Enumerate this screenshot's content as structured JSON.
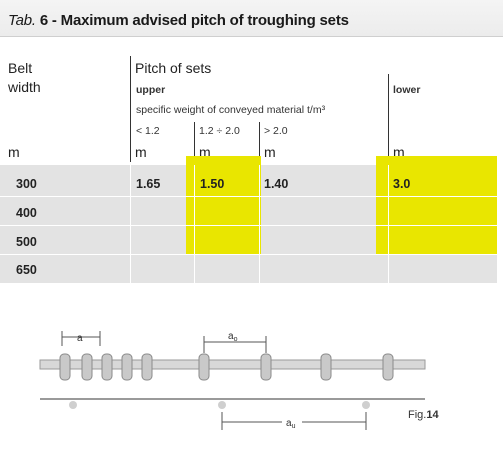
{
  "title": {
    "prefix": "Tab.",
    "text": "6 - Maximum advised pitch of troughing sets"
  },
  "header": {
    "belt_width_line1": "Belt",
    "belt_width_line2": "width",
    "pitch_of_sets": "Pitch of sets",
    "upper": "upper",
    "lower": "lower",
    "specific_weight": "specific weight of conveyed material t/m³",
    "col_lt": "< 1.2",
    "col_mid": "1.2 ÷ 2.0",
    "col_gt": "> 2.0",
    "units": [
      "m",
      "m",
      "m",
      "m",
      "m"
    ]
  },
  "rows": [
    {
      "width": "300",
      "lt": "1.65",
      "mid": "1.50",
      "gt": "1.40",
      "lower": "3.0"
    },
    {
      "width": "400",
      "lt": "",
      "mid": "",
      "gt": "",
      "lower": ""
    },
    {
      "width": "500",
      "lt": "",
      "mid": "",
      "gt": "",
      "lower": ""
    },
    {
      "width": "650",
      "lt": "",
      "mid": "",
      "gt": "",
      "lower": ""
    }
  ],
  "figure": {
    "label_a1": "a",
    "label_ao": "a",
    "label_au": "a",
    "sub_o": "o",
    "sub_u": "u",
    "caption_prefix": "Fig.",
    "caption_num": "14"
  },
  "colors": {
    "highlight": "#e9e600",
    "band": "#e3e3e3"
  }
}
